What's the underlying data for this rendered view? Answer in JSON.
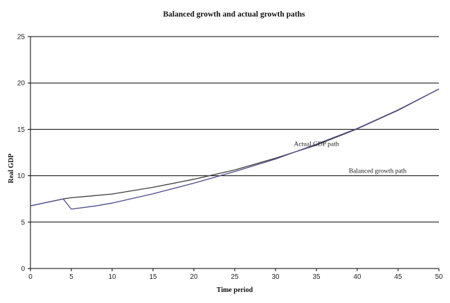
{
  "chart_data": {
    "type": "line",
    "title": "Balanced growth and actual growth paths",
    "xlabel": "Time period",
    "ylabel": "Real GDP",
    "xlim": [
      0,
      50
    ],
    "ylim": [
      0,
      25
    ],
    "xticks": [
      0,
      5,
      10,
      15,
      20,
      25,
      30,
      35,
      40,
      45,
      50
    ],
    "yticks": [
      0,
      5,
      10,
      15,
      20,
      25
    ],
    "grid": "horizontal",
    "series": [
      {
        "name": "Balanced growth path",
        "color": "#3b3b3b",
        "x": [
          0,
          4,
          5,
          10,
          15,
          20,
          25,
          30,
          35,
          40,
          45,
          50
        ],
        "y": [
          6.75,
          7.5,
          7.63,
          8.03,
          8.75,
          9.62,
          10.62,
          11.9,
          13.3,
          15.05,
          17.05,
          19.35
        ]
      },
      {
        "name": "Actual GDP path",
        "color": "#4a4a8a",
        "x": [
          0,
          4,
          5,
          8,
          10,
          15,
          20,
          25,
          30,
          35,
          40,
          45,
          50
        ],
        "y": [
          6.75,
          7.5,
          6.4,
          6.75,
          7.05,
          8.05,
          9.2,
          10.45,
          11.8,
          13.4,
          15.1,
          17.1,
          19.35
        ]
      }
    ],
    "annotations": [
      {
        "text": "Actual GDP path",
        "x": 35,
        "y": 13.2
      },
      {
        "text": "Balanced growth path",
        "x": 42.5,
        "y": 10.3
      }
    ]
  }
}
